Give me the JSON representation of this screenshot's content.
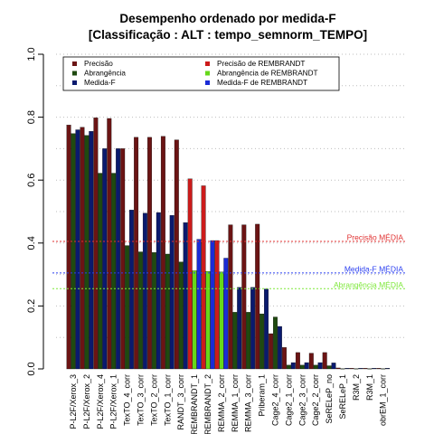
{
  "chart_data": {
    "type": "bar",
    "title": "Desempenho ordenado por medida-F",
    "subtitle": "[Classificação : ALT : tempo_semnorm_TEMPO]",
    "xlabel": "",
    "ylabel": "",
    "ylim": [
      0,
      1
    ],
    "yticks": [
      "0.0",
      "0.2",
      "0.4",
      "0.6",
      "0.8",
      "1.0"
    ],
    "grid": "horizontal dotted",
    "categories": [
      "P-L2F/Xerox_3",
      "P-L2F/Xerox_2",
      "P-L2F/Xerox_4",
      "P-L2F/Xerox_1",
      "TexTO_4_corr",
      "TexTO_3_corr",
      "TexTO_2_corr",
      "TexTO_1_corr",
      "RANDT_3_corr",
      "REMBRANDT_1",
      "REMBRANDT_2",
      "REMMA_2_corr",
      "REMMA_1_corr",
      "REMMA_3_corr",
      "Priberam_1",
      "Cage2_4_corr",
      "Cage2_1_corr",
      "Cage2_3_corr",
      "Cage2_2_corr",
      "SeRELeP_no",
      "SeRELeP_1",
      "R3M_2",
      "R3M_1",
      "obrEM_1_corr"
    ],
    "series": [
      {
        "name": "Precisão",
        "color": "#6b1414",
        "values": [
          0.775,
          0.768,
          0.798,
          0.796,
          0.7,
          0.736,
          0.736,
          0.739,
          0.728,
          0.0,
          0.0,
          0.0,
          0.458,
          0.458,
          0.46,
          0.112,
          0.068,
          0.052,
          0.05,
          0.052,
          0.003,
          0.002,
          0.002,
          0.002
        ]
      },
      {
        "name": "Abrangência",
        "color": "#1f4a10",
        "values": [
          0.748,
          0.742,
          0.622,
          0.622,
          0.392,
          0.372,
          0.37,
          0.365,
          0.34,
          0.312,
          0.31,
          0.308,
          0.18,
          0.18,
          0.175,
          0.165,
          0.012,
          0.012,
          0.012,
          0.01,
          0.001,
          0.001,
          0.001,
          0.001
        ]
      },
      {
        "name": "Medida-F",
        "color": "#0a1a6e",
        "values": [
          0.76,
          0.755,
          0.7,
          0.7,
          0.505,
          0.495,
          0.497,
          0.488,
          0.465,
          0.0,
          0.0,
          0.0,
          0.259,
          0.259,
          0.254,
          0.135,
          0.02,
          0.02,
          0.02,
          0.019,
          0.002,
          0.002,
          0.002,
          0.002
        ]
      },
      {
        "name": "Precisão de REMBRANDT",
        "color": "#cc1b1b",
        "values": [
          0,
          0,
          0,
          0,
          0,
          0,
          0,
          0,
          0,
          0.604,
          0.582,
          0.408,
          0,
          0,
          0,
          0,
          0,
          0,
          0,
          0,
          0,
          0,
          0,
          0
        ]
      },
      {
        "name": "Abrangência de REMBRANDT",
        "color": "#66d81a",
        "values": [
          0,
          0,
          0,
          0,
          0,
          0,
          0,
          0,
          0,
          0.312,
          0.31,
          0.308,
          0,
          0,
          0,
          0,
          0,
          0,
          0,
          0,
          0,
          0,
          0,
          0
        ]
      },
      {
        "name": "Medida-F de REMBRANDT",
        "color": "#1a2bd6",
        "values": [
          0,
          0,
          0,
          0,
          0,
          0,
          0,
          0,
          0,
          0.412,
          0.408,
          0.352,
          0,
          0,
          0,
          0,
          0,
          0,
          0,
          0,
          0,
          0,
          0,
          0
        ]
      }
    ],
    "reference_lines": [
      {
        "label": "Precisão MÉDIA",
        "value": 0.405,
        "color": "#e03030"
      },
      {
        "label": "Medida-F MÉDIA",
        "value": 0.305,
        "color": "#2a3ef0"
      },
      {
        "label": "Abrangência MÉDIA",
        "value": 0.255,
        "color": "#7ee83a"
      }
    ],
    "legend_placement": "top"
  }
}
